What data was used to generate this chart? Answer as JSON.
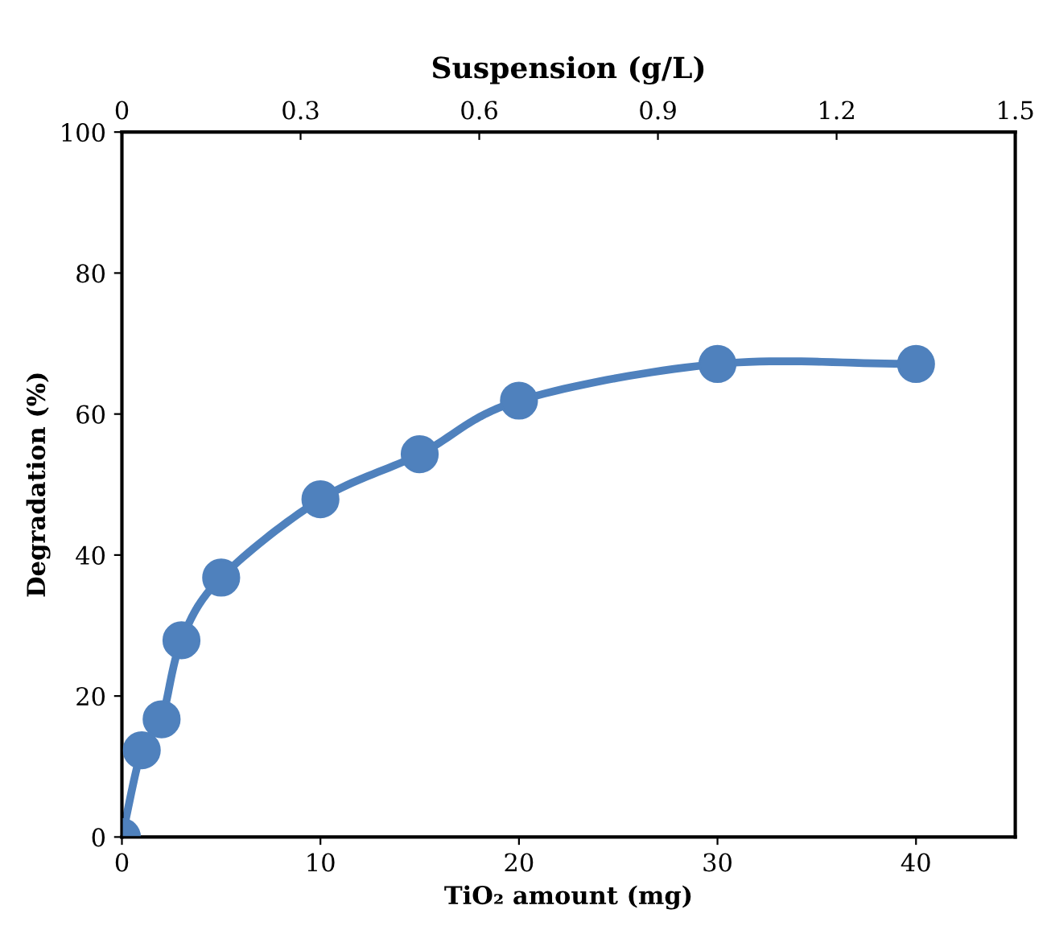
{
  "chart_data": {
    "type": "line",
    "xlabel": "TiO₂ amount (mg)",
    "ylabel": "Degradation (%)",
    "x2label": "Suspension (g/L)",
    "x": [
      0,
      1,
      2,
      3,
      5,
      10,
      15,
      20,
      30,
      40
    ],
    "series": [
      {
        "color": "#4f81bd",
        "values": [
          0,
          12.3,
          16.7,
          27.9,
          36.8,
          47.9,
          54.3,
          61.9,
          67.1,
          67.1
        ]
      }
    ],
    "xlim": [
      0,
      45
    ],
    "xticks": [
      0,
      10,
      20,
      30,
      40
    ],
    "ylim": [
      0,
      100
    ],
    "yticks": [
      0,
      20,
      40,
      60,
      80,
      100
    ],
    "x2lim": [
      0,
      1.5
    ],
    "x2ticks": [
      0,
      0.3,
      0.6,
      0.9,
      1.2,
      1.5
    ],
    "marker": "circle",
    "line_style": "solid",
    "grid": false,
    "legend": false
  }
}
